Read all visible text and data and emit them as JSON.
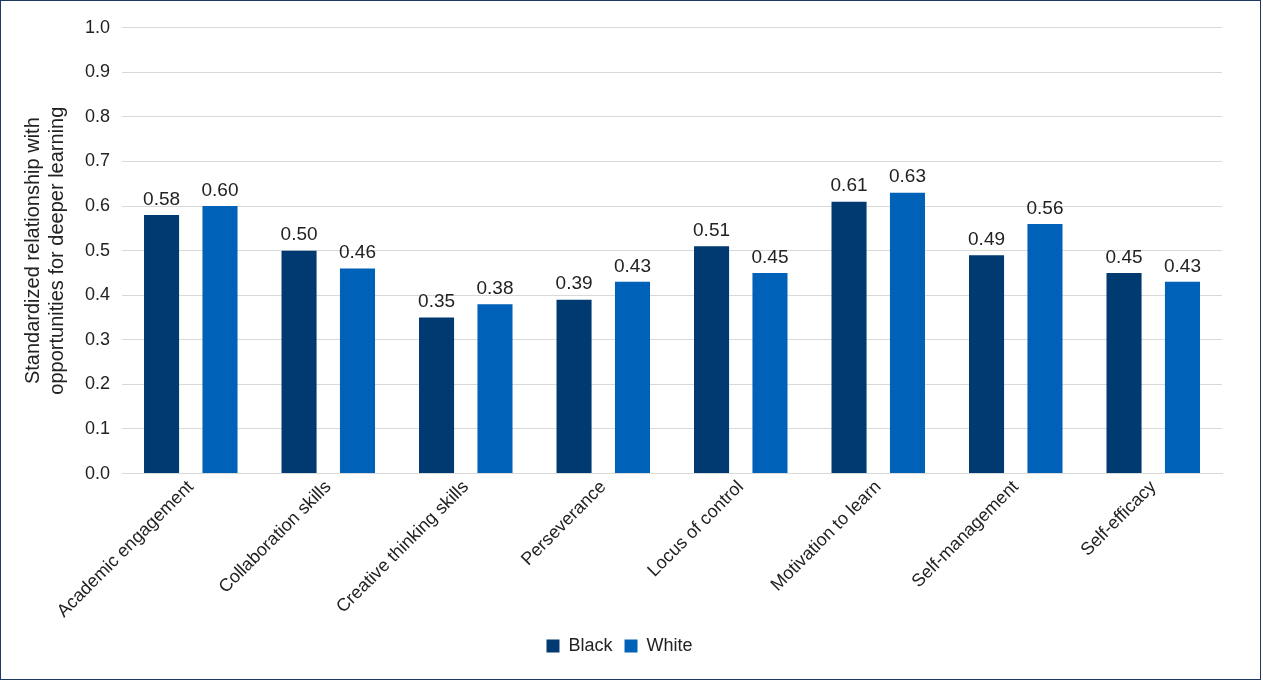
{
  "chart_data": {
    "type": "bar",
    "ylabel": "Standardized relationship with\nopportunities for deeper learning",
    "categories": [
      "Academic engagement",
      "Collaboration skills",
      "Creative thinking skills",
      "Perseverance",
      "Locus of control",
      "Motivation to learn",
      "Self-management",
      "Self-efficacy"
    ],
    "series": [
      {
        "name": "Black",
        "color": "#003a70",
        "values": [
          0.58,
          0.5,
          0.35,
          0.39,
          0.51,
          0.61,
          0.49,
          0.45
        ],
        "value_labels": [
          "0.58",
          "0.50",
          "0.35",
          "0.39",
          "0.51",
          "0.61",
          "0.49",
          "0.45"
        ]
      },
      {
        "name": "White",
        "color": "#0061b8",
        "values": [
          0.6,
          0.46,
          0.38,
          0.43,
          0.45,
          0.63,
          0.56,
          0.43
        ],
        "value_labels": [
          "0.60",
          "0.46",
          "0.38",
          "0.43",
          "0.45",
          "0.63",
          "0.56",
          "0.43"
        ]
      }
    ],
    "ylim": [
      0,
      1
    ],
    "yticks": [
      {
        "value": 0,
        "label": "0.0"
      },
      {
        "value": 0.1,
        "label": "0.1"
      },
      {
        "value": 0.2,
        "label": "0.2"
      },
      {
        "value": 0.3,
        "label": "0.3"
      },
      {
        "value": 0.4,
        "label": "0.4"
      },
      {
        "value": 0.5,
        "label": "0.5"
      },
      {
        "value": 0.6,
        "label": "0.6"
      },
      {
        "value": 0.7,
        "label": "0.7"
      },
      {
        "value": 0.8,
        "label": "0.8"
      },
      {
        "value": 0.9,
        "label": "0.9"
      },
      {
        "value": 1,
        "label": "1.0"
      }
    ],
    "grid": "y",
    "legend": "bottom"
  }
}
